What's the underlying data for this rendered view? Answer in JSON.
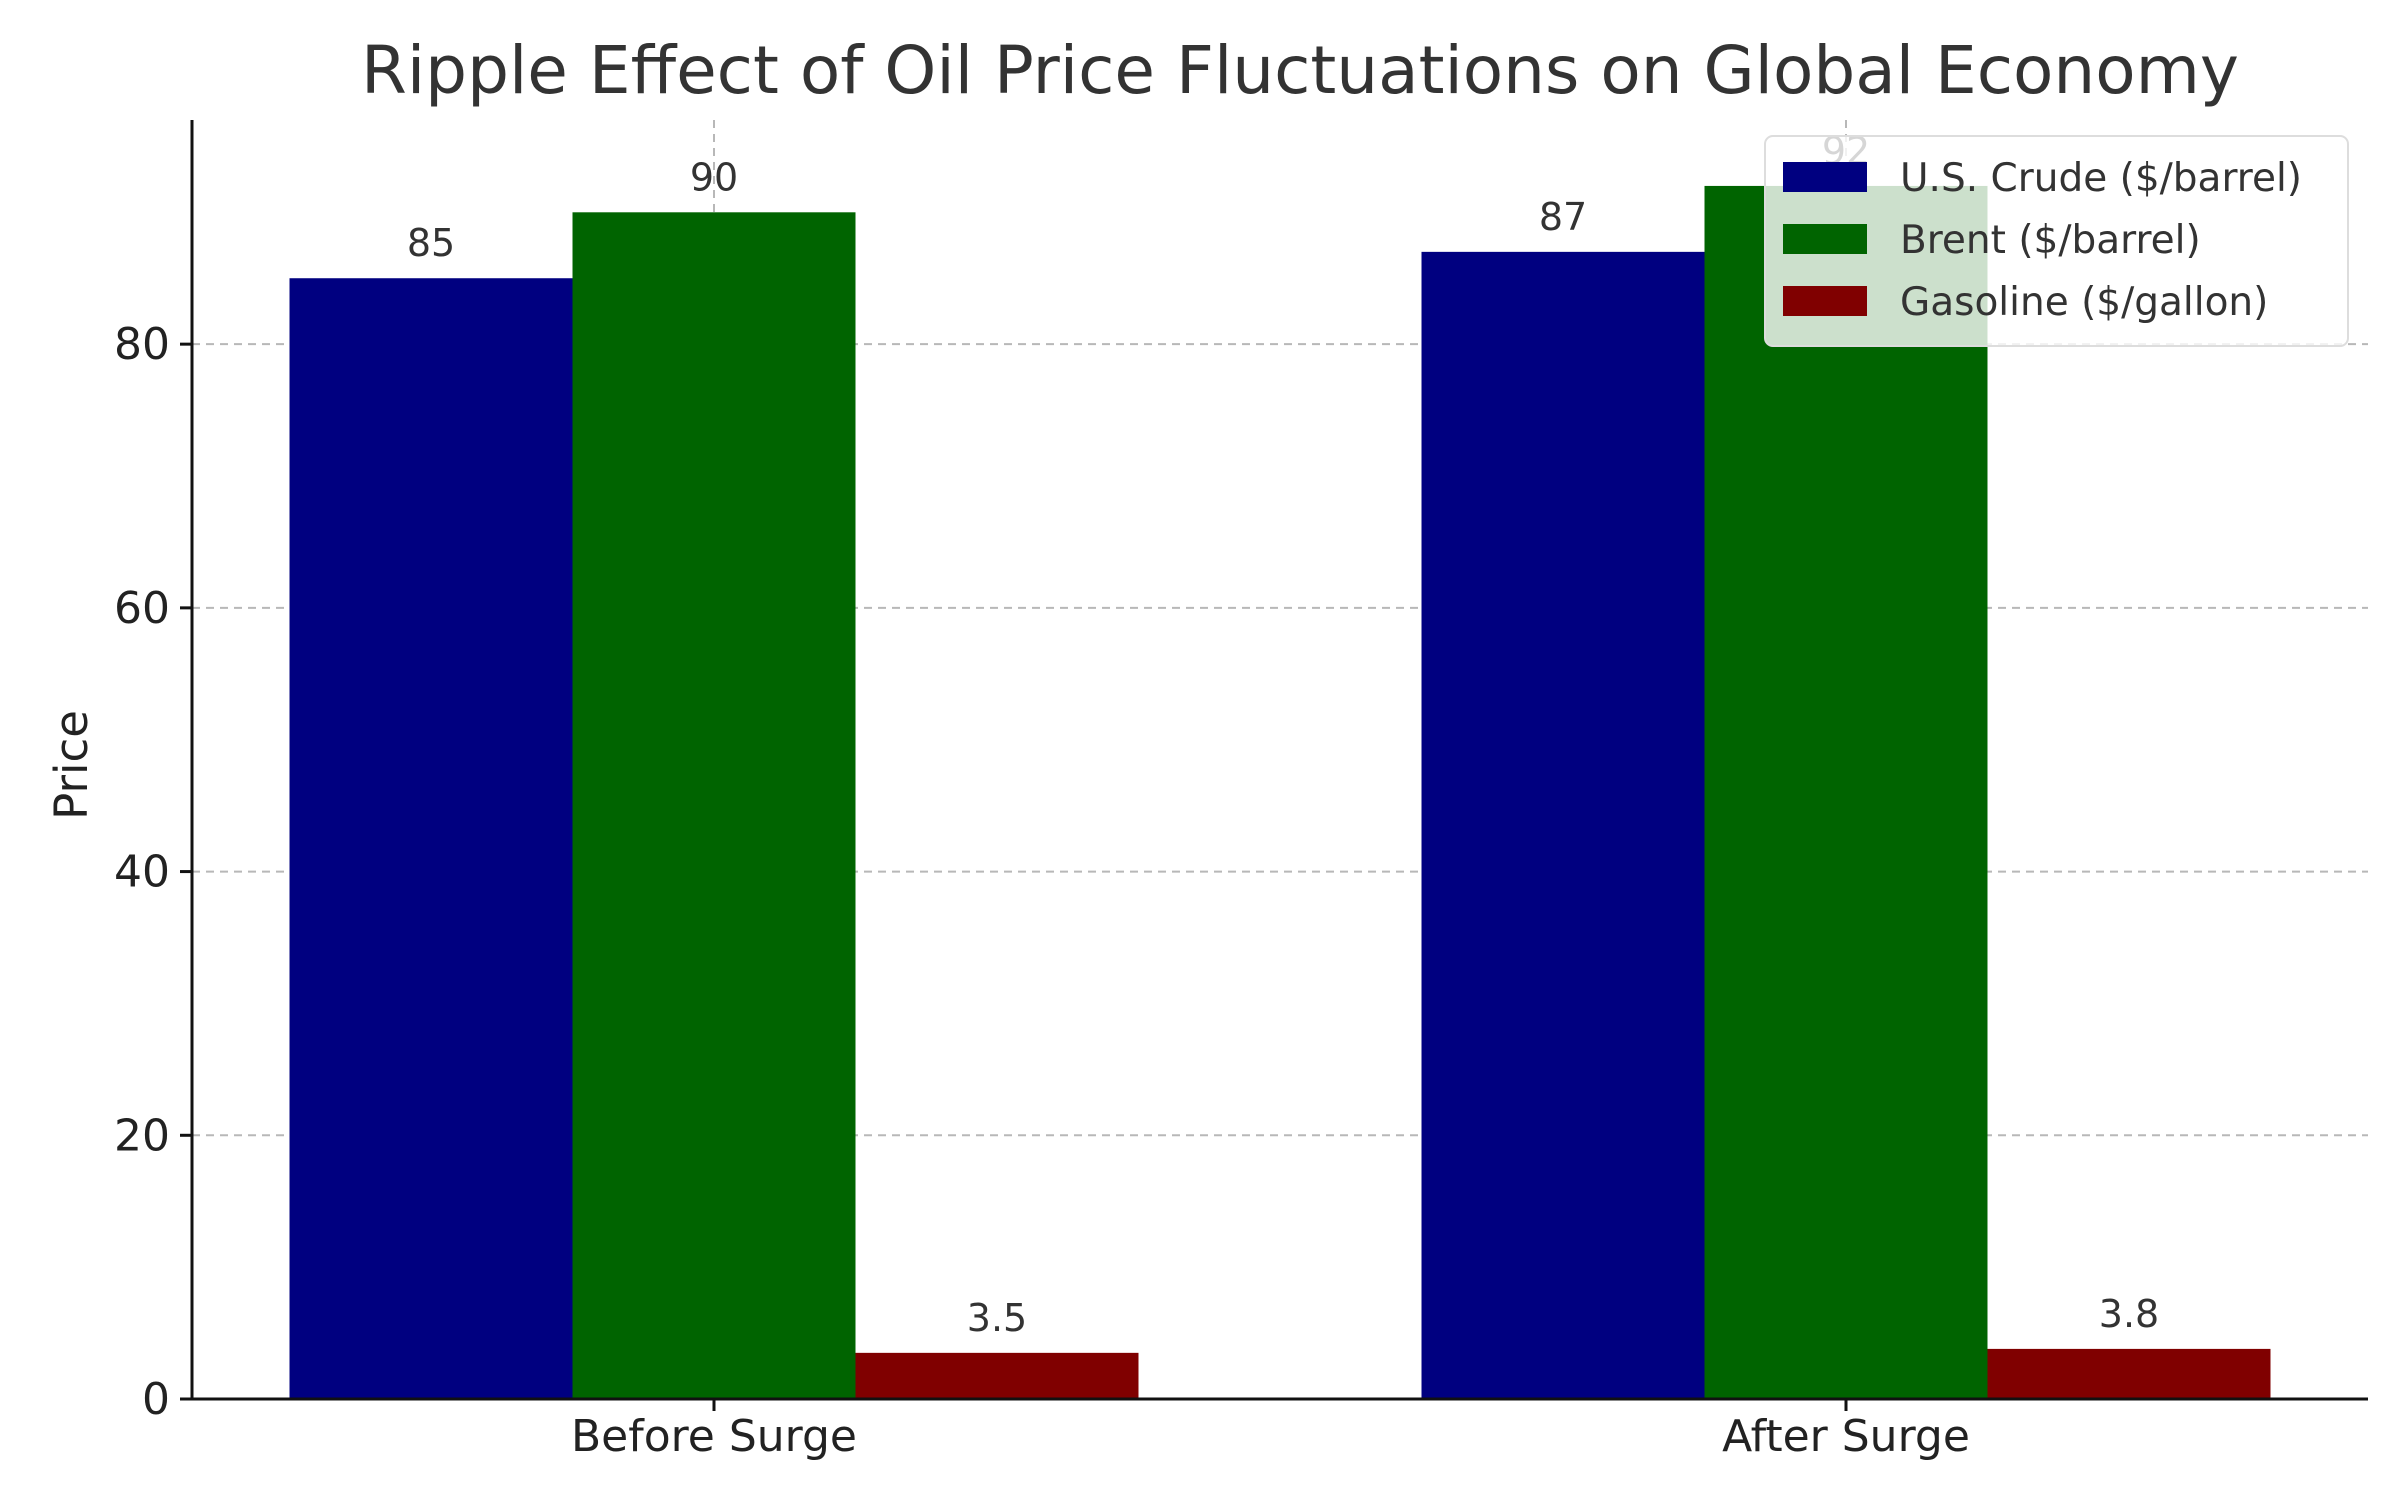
{
  "chart_data": {
    "type": "bar",
    "title": "Ripple Effect of Oil Price Fluctuations on Global Economy",
    "xlabel": "",
    "ylabel": "Price",
    "categories": [
      "Before Surge",
      "After Surge"
    ],
    "series": [
      {
        "name": "U.S. Crude ($/barrel)",
        "values": [
          85,
          87
        ],
        "color": "#000080"
      },
      {
        "name": "Brent ($/barrel)",
        "values": [
          90,
          92
        ],
        "color": "#006400"
      },
      {
        "name": "Gasoline ($/gallon)",
        "values": [
          3.5,
          3.8
        ],
        "color": "#800000"
      }
    ],
    "value_labels": [
      [
        "85",
        "87"
      ],
      [
        "90",
        "92"
      ],
      [
        "3.5",
        "3.8"
      ]
    ],
    "ylim": [
      0,
      97
    ],
    "yticks": [
      0,
      20,
      40,
      60,
      80
    ],
    "grid": true,
    "legend_position": "top-right"
  }
}
